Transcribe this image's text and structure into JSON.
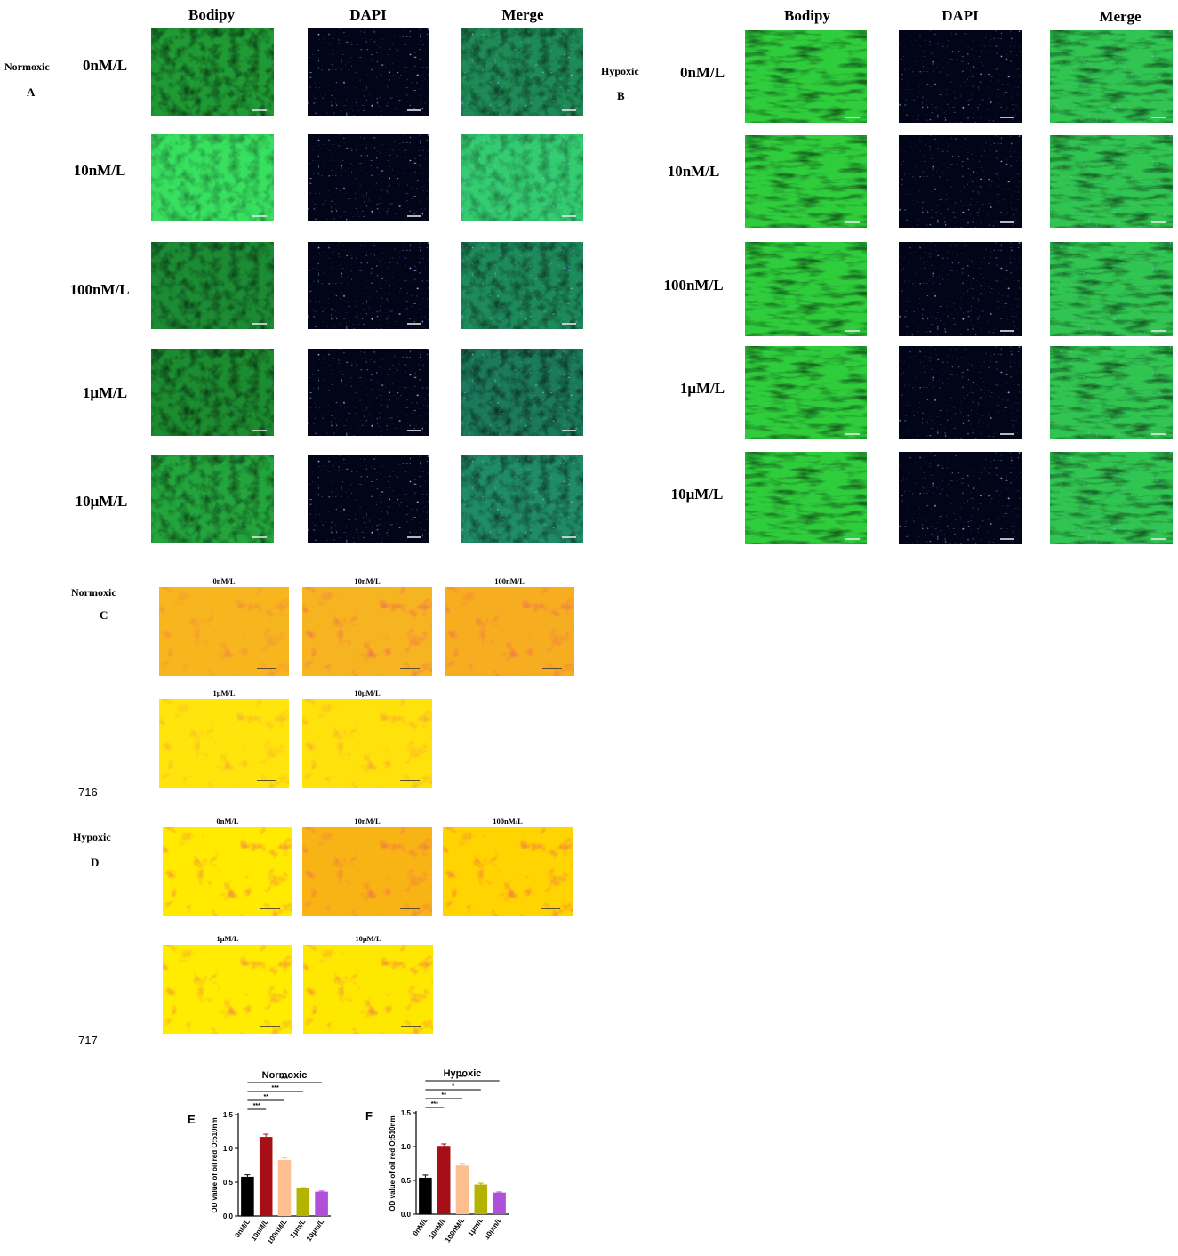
{
  "panelA": {
    "condition": "Normoxic",
    "letter": "A",
    "channels": [
      "Bodipy",
      "DAPI",
      "Merge"
    ],
    "rows": [
      "0nM/L",
      "10nM/L",
      "100nM/L",
      "1μM/L",
      "10μM/L"
    ]
  },
  "panelB": {
    "condition": "Hypoxic",
    "letter": "B",
    "channels": [
      "Bodipy",
      "DAPI",
      "Merge"
    ],
    "rows": [
      "0nM/L",
      "10nM/L",
      "100nM/L",
      "1μM/L",
      "10μM/L"
    ]
  },
  "panelC": {
    "condition": "Normoxic",
    "letter": "C",
    "labels": [
      "0nM/L",
      "10nM/L",
      "100nM/L",
      "1μM/L",
      "10μM/L"
    ],
    "code": "716"
  },
  "panelD": {
    "condition": "Hypoxic",
    "letter": "D",
    "labels": [
      "0nM/L",
      "10nM/L",
      "100nM/L",
      "1μM/L",
      "10μM/L"
    ],
    "code": "717"
  },
  "chart_data": [
    {
      "type": "bar",
      "panel": "E",
      "title": "Normoxic",
      "ylabel": "OD value of oil red O:510nm",
      "categories": [
        "0nM/L",
        "10nM/L",
        "100nM/L",
        "1μm/L",
        "10μm/L"
      ],
      "values": [
        0.58,
        1.17,
        0.83,
        0.41,
        0.36
      ],
      "errors": [
        0.03,
        0.04,
        0.03,
        0.01,
        0.01
      ],
      "colors": [
        "#000000",
        "#a50f15",
        "#fdbf8f",
        "#b3b300",
        "#b050d8"
      ],
      "ylim": [
        0,
        1.5
      ],
      "yticks": [
        "0.0",
        "0.5",
        "1.0",
        "1.5"
      ],
      "significance": [
        {
          "from": 0,
          "to": 1,
          "label": "***"
        },
        {
          "from": 0,
          "to": 2,
          "label": "**"
        },
        {
          "from": 0,
          "to": 3,
          "label": "***"
        },
        {
          "from": 0,
          "to": 4,
          "label": "***"
        }
      ]
    },
    {
      "type": "bar",
      "panel": "F",
      "title": "Hypoxic",
      "ylabel": "OD value of oil red O:510nm",
      "categories": [
        "0nM/L",
        "10nM/L",
        "100nM/L",
        "1μm/L",
        "10μm/L"
      ],
      "values": [
        0.54,
        1.01,
        0.72,
        0.44,
        0.32
      ],
      "errors": [
        0.04,
        0.03,
        0.02,
        0.02,
        0.01
      ],
      "colors": [
        "#000000",
        "#a50f15",
        "#fdbf8f",
        "#b3b300",
        "#b050d8"
      ],
      "ylim": [
        0,
        1.5
      ],
      "yticks": [
        "0.0",
        "0.5",
        "1.0",
        "1.5"
      ],
      "significance": [
        {
          "from": 0,
          "to": 1,
          "label": "***"
        },
        {
          "from": 0,
          "to": 2,
          "label": "**"
        },
        {
          "from": 0,
          "to": 3,
          "label": "*"
        },
        {
          "from": 0,
          "to": 4,
          "label": "***"
        }
      ]
    }
  ]
}
